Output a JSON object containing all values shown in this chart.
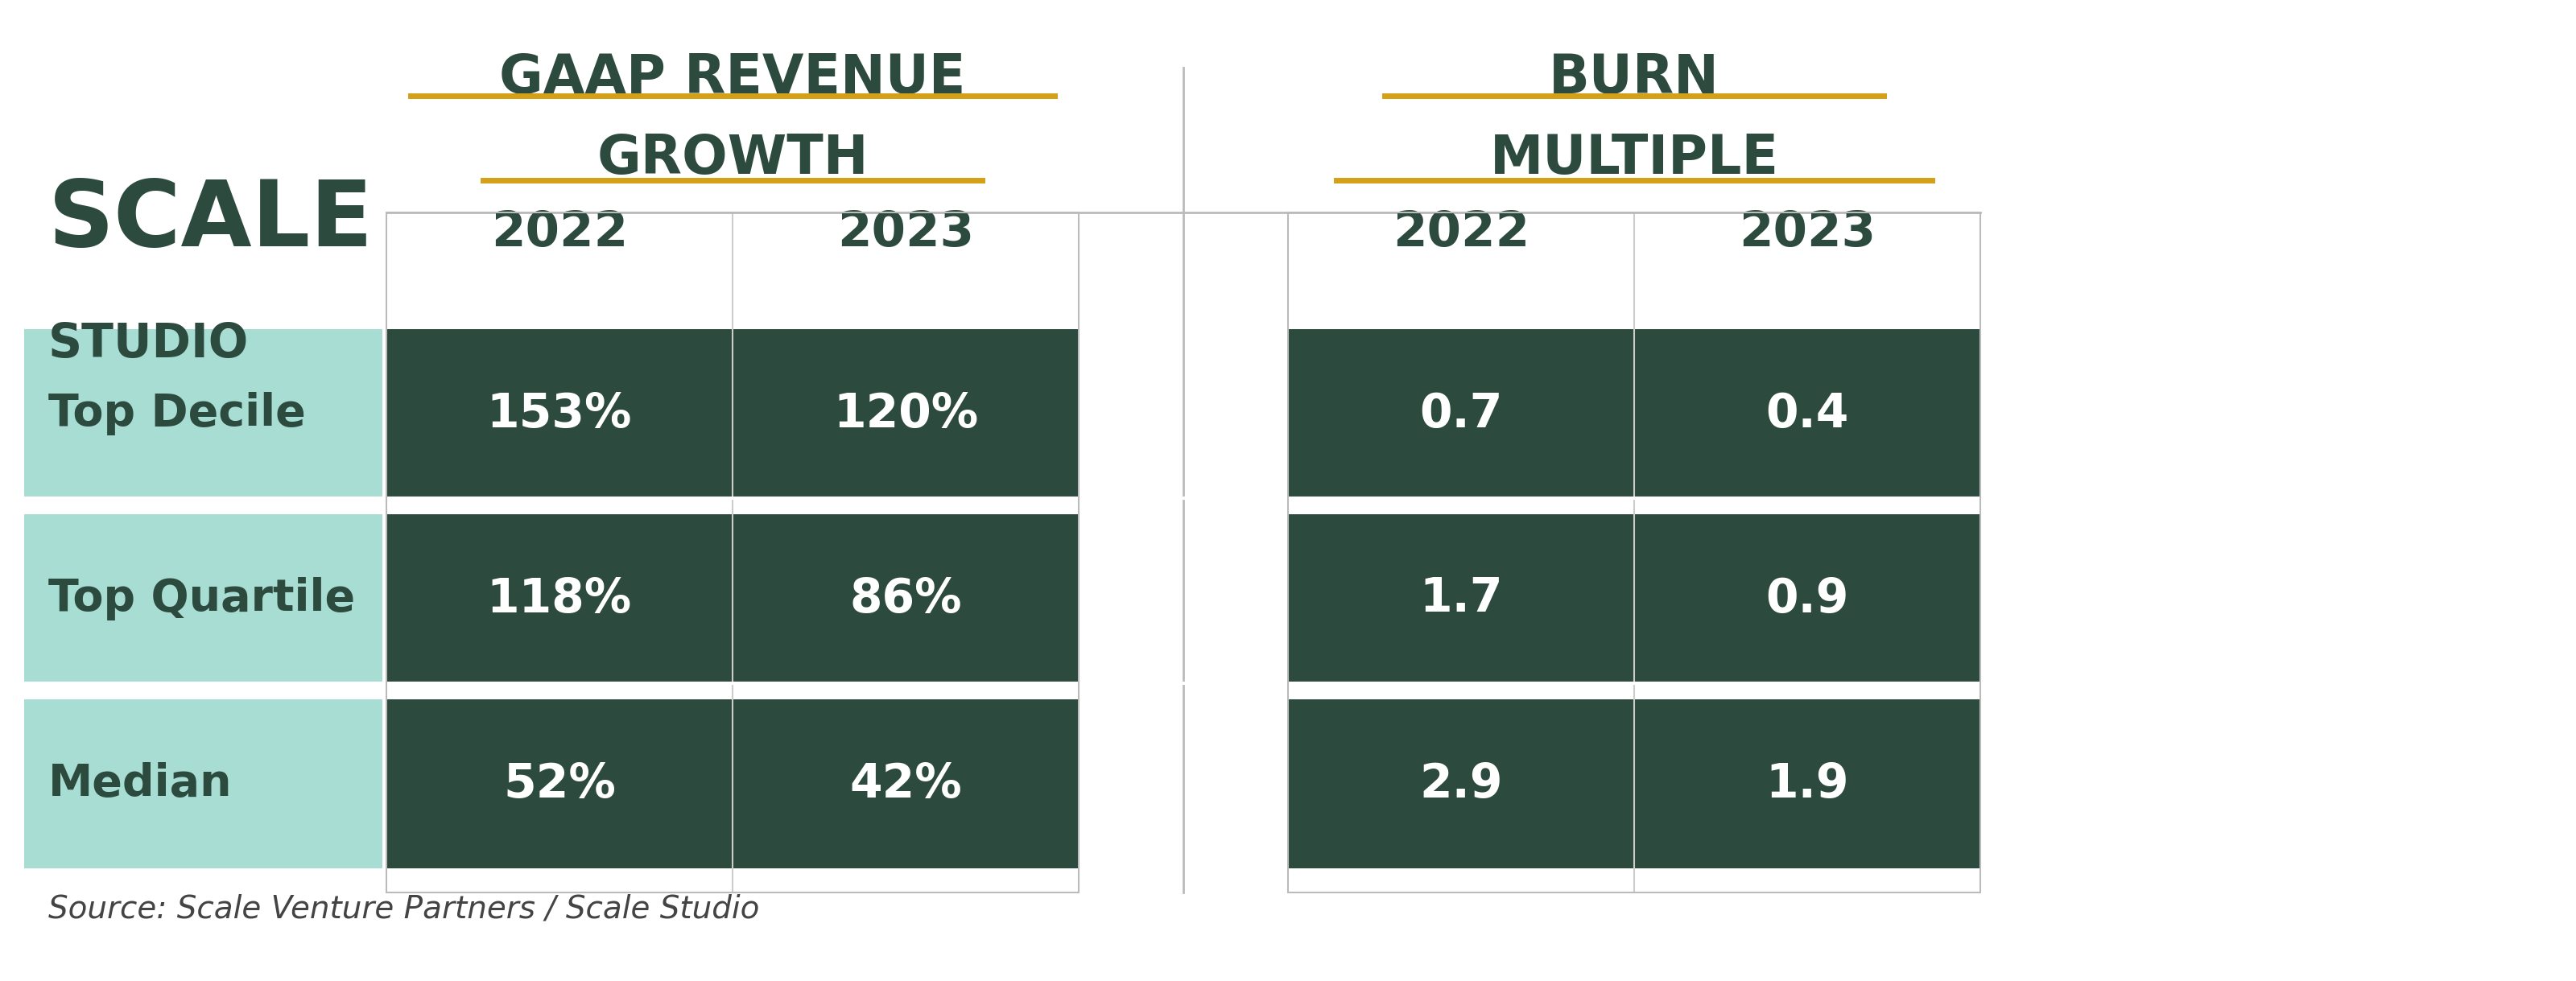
{
  "title_line1": "GAAP REVENUE",
  "title_line2": "GROWTH",
  "title_burn_line1": "BURN",
  "title_burn_line2": "MULTIPLE",
  "years": [
    "2022",
    "2023"
  ],
  "rows": [
    "Top Decile",
    "Top Quartile",
    "Median"
  ],
  "gaap_growth": [
    [
      "153%",
      "120%"
    ],
    [
      "118%",
      "86%"
    ],
    [
      "52%",
      "42%"
    ]
  ],
  "burn_multiple": [
    [
      "0.7",
      "0.4"
    ],
    [
      "1.7",
      "0.9"
    ],
    [
      "2.9",
      "1.9"
    ]
  ],
  "dark_green": "#2D4A3E",
  "light_teal": "#A8DDD3",
  "white": "#FFFFFF",
  "gold": "#D4A017",
  "bg_color": "#FFFFFF",
  "scale_color": "#2D4A3E",
  "source_text": "Source: Scale Venture Partners / Scale Studio",
  "scale_text": "SCALE",
  "studio_text": "STUDIO"
}
